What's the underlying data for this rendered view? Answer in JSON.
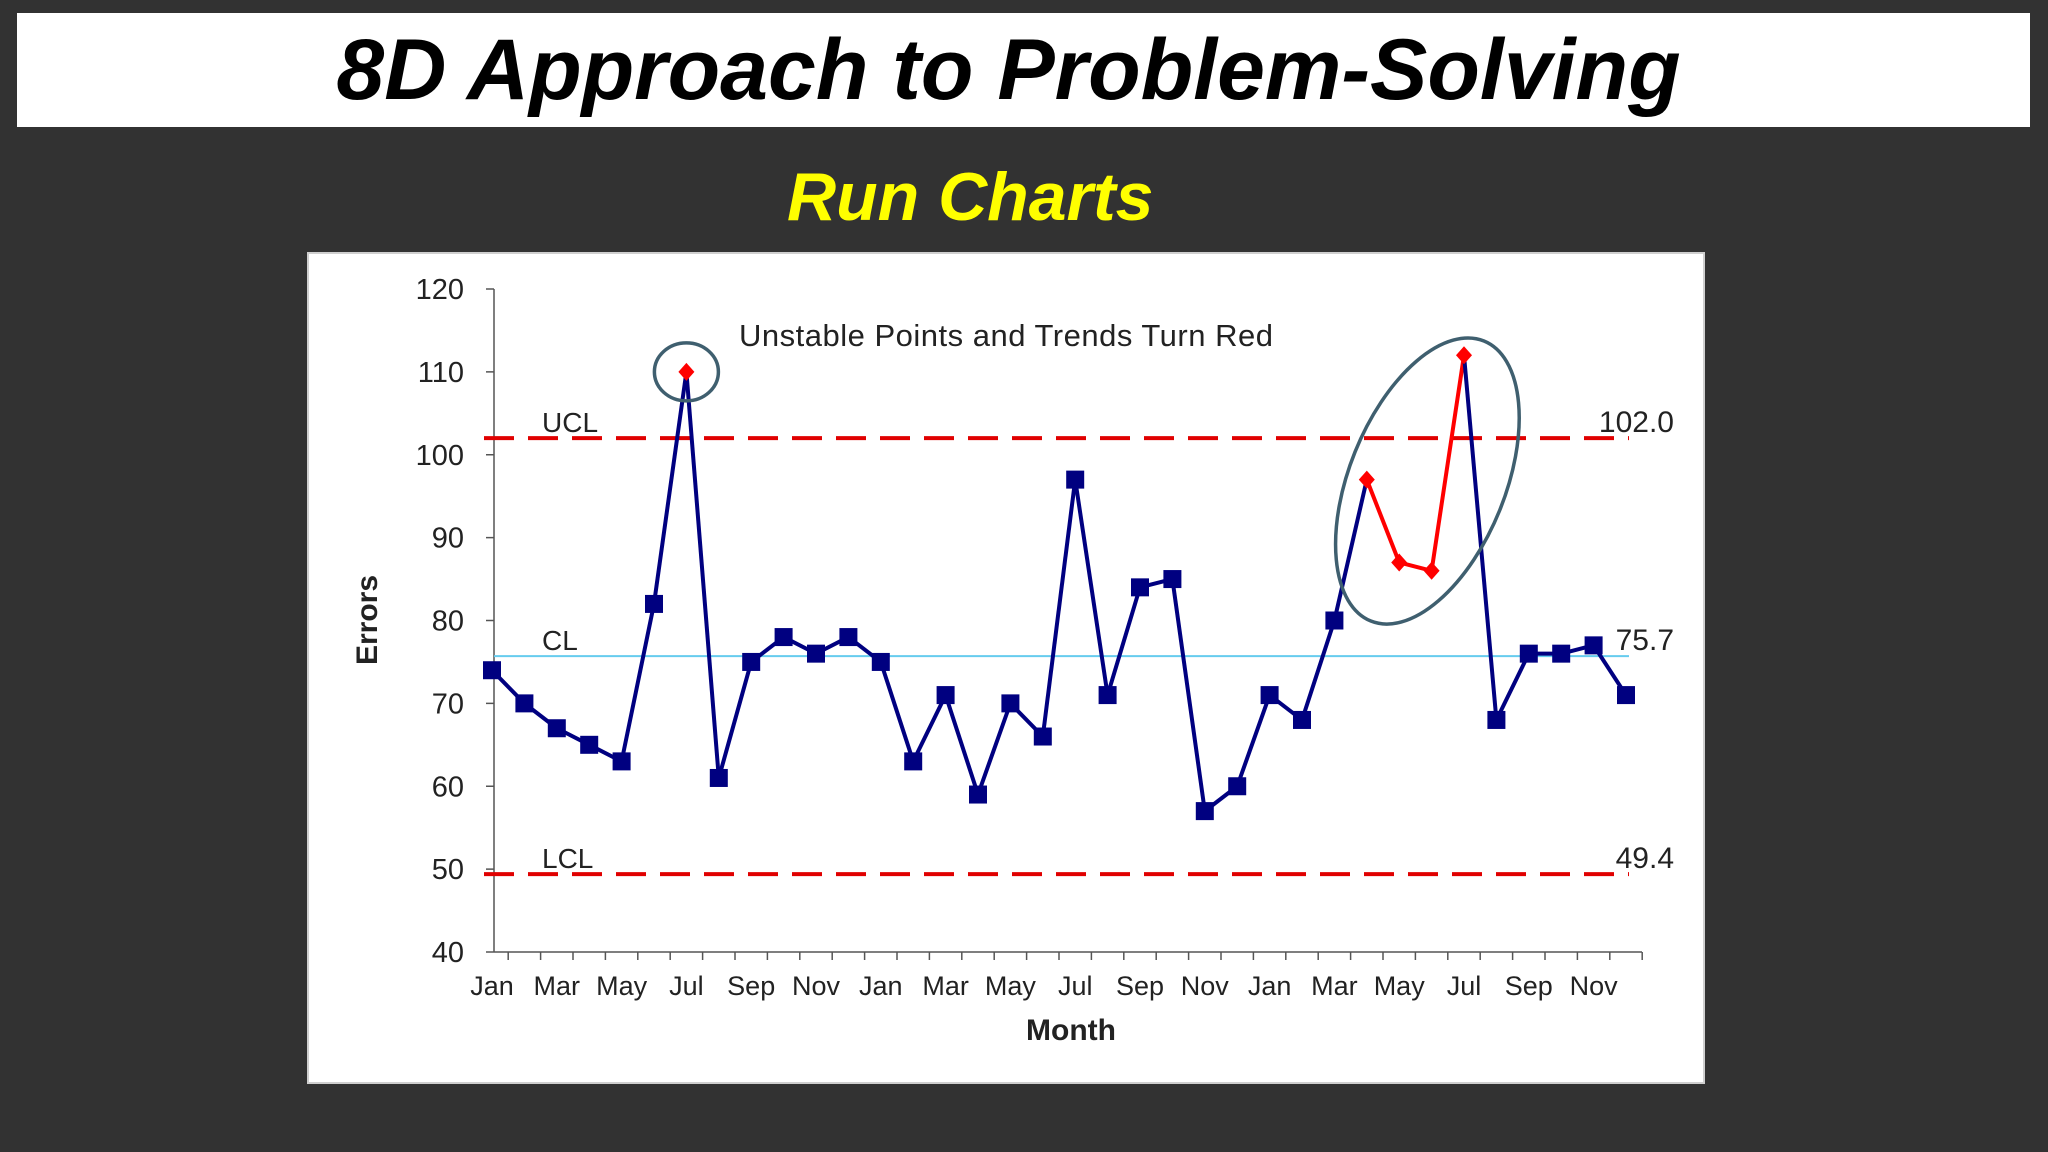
{
  "slide": {
    "title": "8D Approach to Problem-Solving",
    "subtitle": "Run Charts"
  },
  "colors": {
    "background": "#323232",
    "title_bg": "#ffffff",
    "subtitle": "#ffff00",
    "series": "#000080",
    "unstable": "#ff0000",
    "limit_line": "#e00000",
    "center_line": "#66ccee",
    "ellipse": "#3f5f6f"
  },
  "chart_data": {
    "type": "line",
    "title": "",
    "xlabel": "Month",
    "ylabel": "Errors",
    "ylim": [
      40,
      120
    ],
    "yticks": [
      40,
      50,
      60,
      70,
      80,
      90,
      100,
      110,
      120
    ],
    "x_tick_labels": [
      "Jan",
      "Mar",
      "May",
      "Jul",
      "Sep",
      "Nov",
      "Jan",
      "Mar",
      "May",
      "Jul",
      "Sep",
      "Nov",
      "Jan",
      "Mar",
      "May",
      "Jul",
      "Sep",
      "Nov"
    ],
    "x": [
      "Jan",
      "Feb",
      "Mar",
      "Apr",
      "May",
      "Jun",
      "Jul",
      "Aug",
      "Sep",
      "Oct",
      "Nov",
      "Dec",
      "Jan",
      "Feb",
      "Mar",
      "Apr",
      "May",
      "Jun",
      "Jul",
      "Aug",
      "Sep",
      "Oct",
      "Nov",
      "Dec",
      "Jan",
      "Feb",
      "Mar",
      "Apr",
      "May",
      "Jun",
      "Jul",
      "Aug",
      "Sep",
      "Oct",
      "Nov",
      "Dec"
    ],
    "series": [
      {
        "values": [
          74,
          70,
          67,
          65,
          63,
          82,
          110,
          61,
          75,
          78,
          76,
          78,
          75,
          63,
          71,
          59,
          70,
          66,
          97,
          71,
          84,
          85,
          57,
          60,
          71,
          68,
          80,
          97,
          87,
          86,
          112,
          68,
          76,
          76,
          77,
          71
        ]
      }
    ],
    "unstable_indices": [
      6,
      27,
      28,
      29,
      30
    ],
    "control_lines": {
      "ucl": {
        "label": "UCL",
        "value": 102.0,
        "value_label": "102.0"
      },
      "cl": {
        "label": "CL",
        "value": 75.7,
        "value_label": "75.7"
      },
      "lcl": {
        "label": "LCL",
        "value": 49.4,
        "value_label": "49.4"
      }
    },
    "annotation": "Unstable Points and Trends Turn Red",
    "grid": false
  }
}
